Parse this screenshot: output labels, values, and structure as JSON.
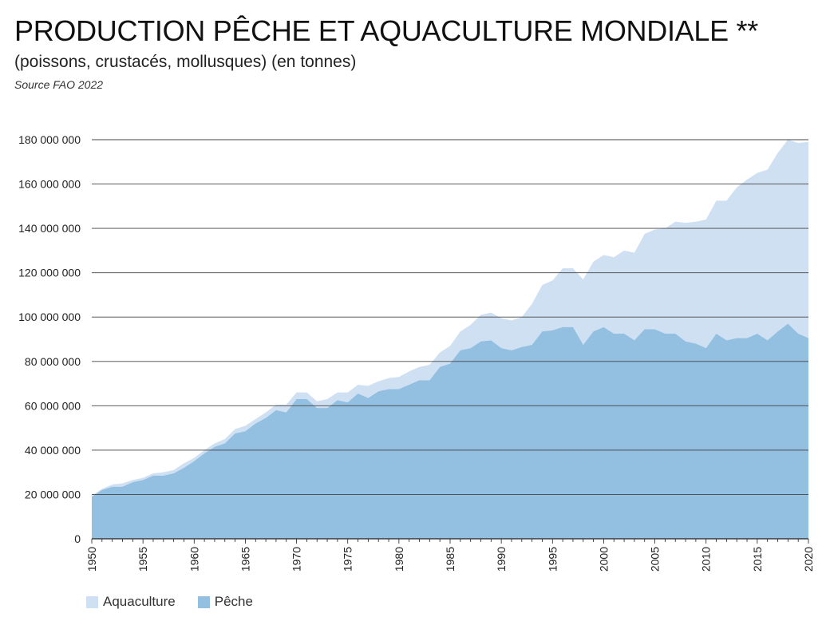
{
  "header": {
    "title": "PRODUCTION PÊCHE ET AQUACULTURE MONDIALE **",
    "subtitle": "(poissons, crustacés, mollusques) (en tonnes)",
    "source": "Source FAO 2022"
  },
  "colors": {
    "aquaculture": "#cfe0f3",
    "peche": "#93bfe1",
    "gridline": "#444444"
  },
  "chart_data": {
    "type": "area",
    "stacked": true,
    "title": "PRODUCTION PÊCHE ET AQUACULTURE MONDIALE **",
    "xlabel": "",
    "ylabel": "",
    "xlim": [
      1950,
      2020
    ],
    "ylim": [
      0,
      180000000
    ],
    "grid": true,
    "legend_position": "bottom-left",
    "y_tick_labels": [
      "0",
      "20 000 000",
      "40 000 000",
      "60 000 000",
      "80 000 000",
      "100 000 000",
      "120 000 000",
      "140 000 000",
      "160 000 000",
      "180 000 000"
    ],
    "x_tick_labels": [
      "1950",
      "1955",
      "1960",
      "1965",
      "1970",
      "1975",
      "1980",
      "1985",
      "1990",
      "1995",
      "2000",
      "2005",
      "2010",
      "2015",
      "2020"
    ],
    "x": [
      1950,
      1951,
      1952,
      1953,
      1954,
      1955,
      1956,
      1957,
      1958,
      1959,
      1960,
      1961,
      1962,
      1963,
      1964,
      1965,
      1966,
      1967,
      1968,
      1969,
      1970,
      1971,
      1972,
      1973,
      1974,
      1975,
      1976,
      1977,
      1978,
      1979,
      1980,
      1981,
      1982,
      1983,
      1984,
      1985,
      1986,
      1987,
      1988,
      1989,
      1990,
      1991,
      1992,
      1993,
      1994,
      1995,
      1996,
      1997,
      1998,
      1999,
      2000,
      2001,
      2002,
      2003,
      2004,
      2005,
      2006,
      2007,
      2008,
      2009,
      2010,
      2011,
      2012,
      2013,
      2014,
      2015,
      2016,
      2017,
      2018,
      2019,
      2020
    ],
    "series": [
      {
        "name": "Pêche",
        "values": [
          19000000,
          22000000,
          23500000,
          23500000,
          25500000,
          26500000,
          28500000,
          28500000,
          29500000,
          32000000,
          35000000,
          38500000,
          41500000,
          43000000,
          47500000,
          48500000,
          52000000,
          54500000,
          58000000,
          57000000,
          63000000,
          63000000,
          59000000,
          59000000,
          62500000,
          61500000,
          65500000,
          63500000,
          66500000,
          67500000,
          67500000,
          69500000,
          71500000,
          71500000,
          77500000,
          79000000,
          85000000,
          86000000,
          89000000,
          89500000,
          86000000,
          85000000,
          86500000,
          87500000,
          93500000,
          94000000,
          95500000,
          95500000,
          87500000,
          93500000,
          95500000,
          92500000,
          92500000,
          89500000,
          94500000,
          94500000,
          92500000,
          92500000,
          89000000,
          88000000,
          86000000,
          92500000,
          89500000,
          90500000,
          90500000,
          92500000,
          89500000,
          93500000,
          97000000,
          92500000,
          90500000
        ]
      },
      {
        "name": "Aquaculture",
        "values": [
          500000,
          500000,
          1000000,
          1500000,
          1000000,
          1000000,
          1000000,
          1500000,
          1500000,
          2000000,
          1500000,
          1500000,
          1500000,
          2000000,
          2000000,
          2500000,
          2000000,
          2500000,
          2500000,
          3500000,
          3000000,
          3000000,
          3000000,
          4000000,
          3500000,
          4500000,
          4000000,
          5500000,
          4500000,
          5000000,
          5500000,
          6000000,
          6000000,
          7000000,
          6500000,
          8000000,
          8500000,
          10500000,
          12000000,
          12500000,
          13500000,
          13500000,
          13500000,
          18500000,
          21000000,
          22500000,
          26500000,
          26500000,
          29500000,
          31500000,
          32500000,
          34500000,
          37500000,
          39500000,
          43000000,
          45000000,
          47500000,
          50500000,
          53500000,
          55000000,
          58000000,
          60000000,
          63000000,
          68000000,
          71500000,
          72500000,
          77000000,
          80500000,
          83000000,
          86000000,
          88500000
        ]
      }
    ]
  }
}
